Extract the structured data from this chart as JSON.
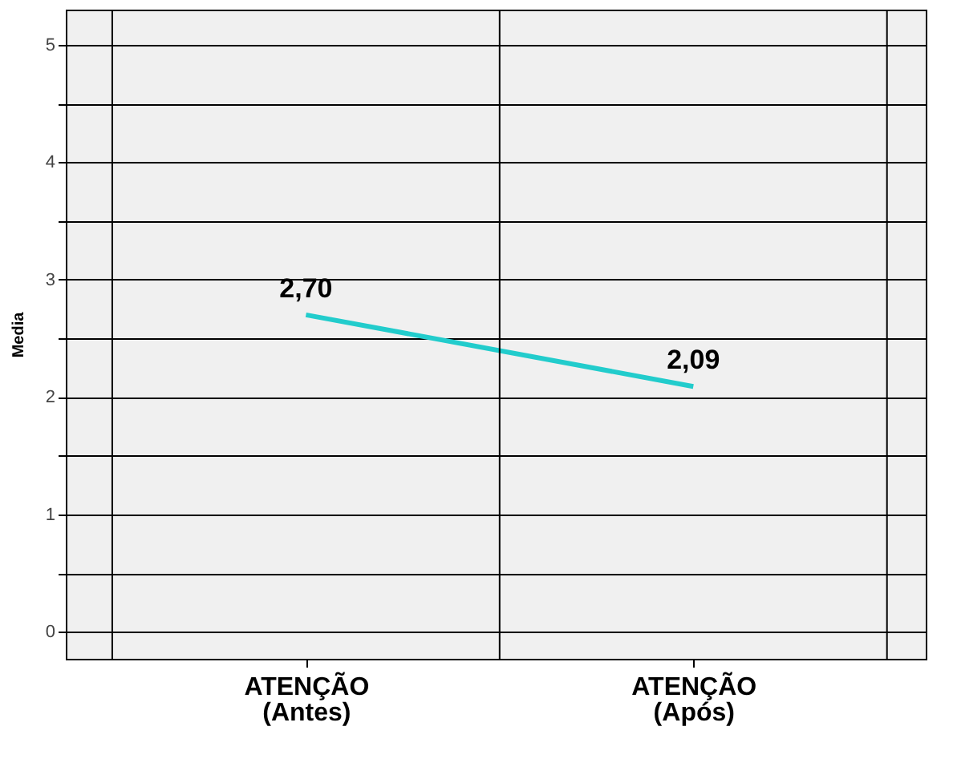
{
  "chart_data": {
    "type": "line",
    "ylabel": "Media",
    "categories": [
      "ATENÇÃO\n(Antes)",
      "ATENÇÃO\n(Após)"
    ],
    "series": [
      {
        "color": "#22cccc",
        "values": [
          2.7,
          2.09
        ],
        "value_labels": [
          "2,70",
          "2,09"
        ]
      }
    ],
    "ylim": [
      -0.23,
      5.3
    ],
    "yticks": [
      0,
      {
        "value": 0.5,
        "label": null
      },
      1,
      {
        "value": 1.5,
        "label": null
      },
      2,
      {
        "value": 2.5,
        "label": null
      },
      3,
      {
        "value": 3.5,
        "label": null
      },
      4,
      {
        "value": 4.5,
        "label": null
      },
      5
    ],
    "grid": true,
    "marker": "none",
    "line_style": "solid"
  }
}
